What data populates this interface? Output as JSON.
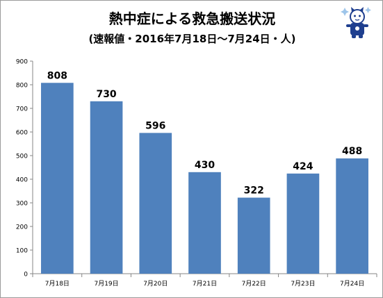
{
  "chart_data": {
    "type": "bar",
    "title": "熱中症による救急搬送状況",
    "subtitle": "(速報値・2016年7月18日～7月24日・人)",
    "xlabel": "",
    "ylabel": "",
    "categories": [
      "7月18日",
      "7月19日",
      "7月20日",
      "7月21日",
      "7月22日",
      "7月23日",
      "7月24日"
    ],
    "values": [
      808,
      730,
      596,
      430,
      322,
      424,
      488
    ],
    "ylim": [
      0,
      900
    ],
    "yticks": [
      0,
      100,
      200,
      300,
      400,
      500,
      600,
      700,
      800,
      900
    ],
    "grid": false,
    "legend": "none",
    "data_labels": true,
    "colors": {
      "bar": "#4f81bd",
      "axis": "#868686",
      "text": "#000000"
    }
  },
  "icons": {
    "mascot": "cat-mascot-icon"
  }
}
